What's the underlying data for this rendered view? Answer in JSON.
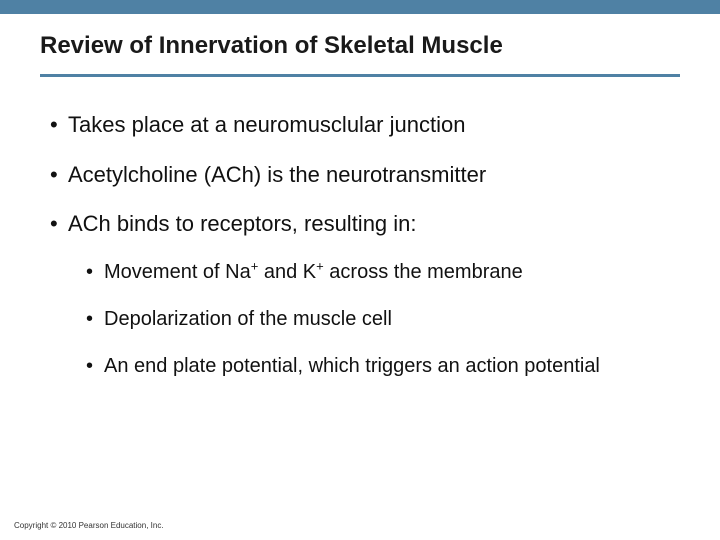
{
  "colors": {
    "top_bar": "#4f81a4",
    "underline": "#4f81a4",
    "background": "#ffffff",
    "text": "#111111"
  },
  "title": "Review of Innervation of Skeletal Muscle",
  "bullets": [
    {
      "text": "Takes place at a neuromusclular junction"
    },
    {
      "text": "Acetylcholine (ACh) is the neurotransmitter"
    },
    {
      "text": "ACh binds to receptors, resulting in:"
    }
  ],
  "sub_bullets": [
    {
      "html": "Movement of Na<sup>+</sup> and K<sup>+</sup> across the membrane"
    },
    {
      "html": "Depolarization of the muscle cell"
    },
    {
      "html": "An end plate potential, which triggers an action potential"
    }
  ],
  "copyright": "Copyright © 2010 Pearson Education, Inc."
}
